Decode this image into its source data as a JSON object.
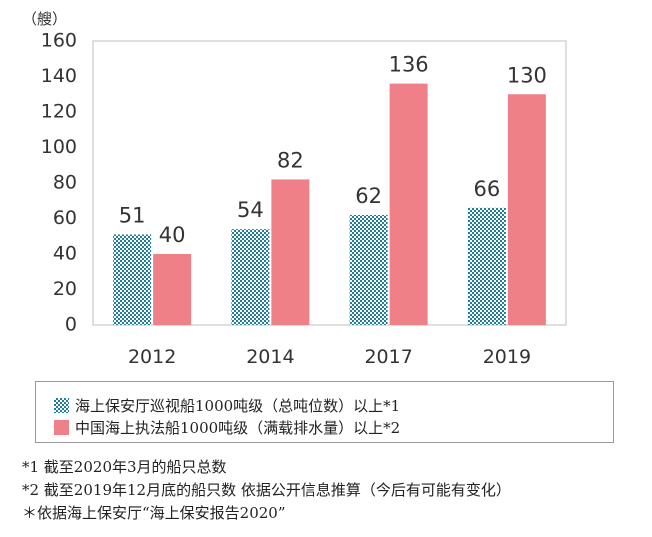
{
  "chart_data": {
    "type": "bar",
    "unit_label": "（艘）",
    "categories": [
      "2012",
      "2014",
      "2017",
      "2019"
    ],
    "series": [
      {
        "name": "海上保安厅巡视船1000吨级（总吨位数）以上*1",
        "values": [
          51,
          54,
          62,
          66
        ],
        "color": "#1f7f9a",
        "pattern": "checker"
      },
      {
        "name": "中国海上执法船1000吨级（满载排水量）以上*2",
        "values": [
          40,
          82,
          136,
          130
        ],
        "color": "#f08088",
        "pattern": "solid"
      }
    ],
    "yticks": [
      0,
      20,
      40,
      60,
      80,
      100,
      120,
      140,
      160
    ],
    "ylim": [
      0,
      160
    ],
    "grid": false,
    "legend_position": "bottom"
  },
  "notes": [
    "*1  截至2020年3月的船只总数",
    "*2  截至2019年12月底的船只数    依据公开信息推算（今后有可能有变化）",
    "＊依据海上保安厅“海上保安报告2020”"
  ]
}
